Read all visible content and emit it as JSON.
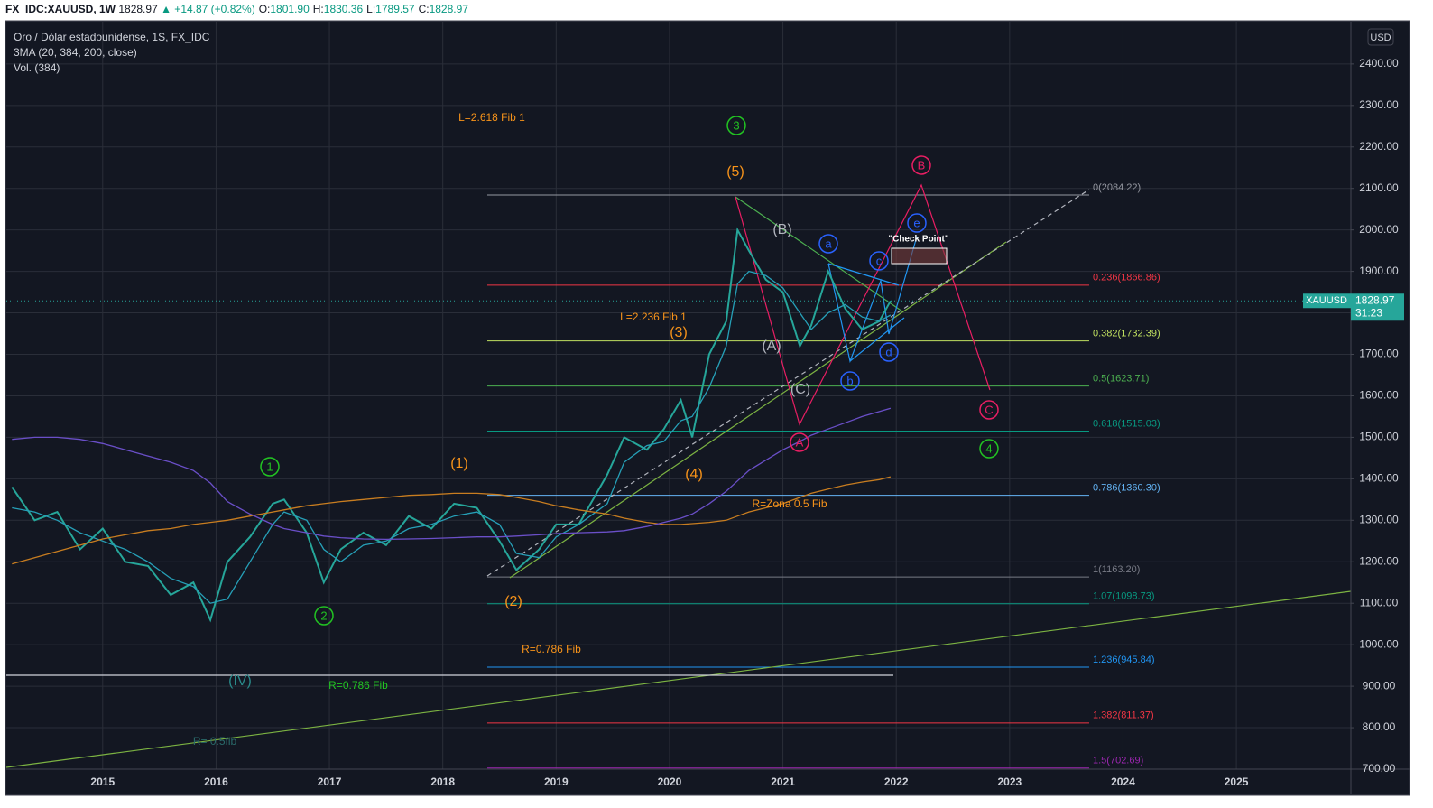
{
  "header": {
    "symbol": "FX_IDC:XAUUSD, 1W",
    "last": "1828.97",
    "change": "▲ +14.87 (+0.82%)",
    "ohlc": [
      {
        "label": "O:",
        "value": "1801.90"
      },
      {
        "label": "H:",
        "value": "1830.36"
      },
      {
        "label": "L:",
        "value": "1789.57"
      },
      {
        "label": "C:",
        "value": "1828.97"
      }
    ]
  },
  "chart_data": {
    "type": "line",
    "title": "Oro / Dólar estadounidense, 1S, FX_IDC",
    "legend_lines": [
      "3MA (20, 384, 200, close)",
      "Vol. (384)"
    ],
    "currency": "USD",
    "xlim": [
      2014.15,
      2026.01
    ],
    "xticks": [
      2015,
      2016,
      2017,
      2018,
      2019,
      2020,
      2021,
      2022,
      2023,
      2024,
      2025
    ],
    "ylim": [
      700,
      2502
    ],
    "yticks": [
      {
        "value": 700,
        "label": "700.00"
      },
      {
        "value": 800,
        "label": "800.00"
      },
      {
        "value": 900,
        "label": "900.00"
      },
      {
        "value": 1000,
        "label": "1000.00"
      },
      {
        "value": 1100,
        "label": "1100.00"
      },
      {
        "value": 1200,
        "label": "1200.00"
      },
      {
        "value": 1300,
        "label": "1300.00"
      },
      {
        "value": 1400,
        "label": "1400.00"
      },
      {
        "value": 1500,
        "label": "1500.00"
      },
      {
        "value": 1600,
        "label": "1600.00"
      },
      {
        "value": 1700,
        "label": "1700.00"
      },
      {
        "value": 1800,
        "label": "1800.00"
      },
      {
        "value": 1900,
        "label": "1900.00"
      },
      {
        "value": 2000,
        "label": "2000.00"
      },
      {
        "value": 2100,
        "label": "2100.00"
      },
      {
        "value": 2200,
        "label": "2200.00"
      },
      {
        "value": 2300,
        "label": "2300.00"
      },
      {
        "value": 2400,
        "label": "2400.00"
      }
    ],
    "grid": true,
    "x": [
      2014.2,
      2014.4,
      2014.6,
      2014.8,
      2015.0,
      2015.2,
      2015.4,
      2015.6,
      2015.8,
      2015.95,
      2016.1,
      2016.3,
      2016.5,
      2016.6,
      2016.8,
      2016.95,
      2017.1,
      2017.3,
      2017.5,
      2017.7,
      2017.9,
      2018.1,
      2018.3,
      2018.5,
      2018.65,
      2018.85,
      2019.0,
      2019.2,
      2019.45,
      2019.6,
      2019.8,
      2019.95,
      2020.1,
      2020.2,
      2020.35,
      2020.5,
      2020.6,
      2020.7,
      2020.85,
      2021.0,
      2021.15,
      2021.25,
      2021.4,
      2021.55,
      2021.7,
      2021.85,
      2021.95
    ],
    "series": [
      {
        "name": "XAUUSD",
        "color": "#26a69a",
        "values": [
          1380,
          1300,
          1320,
          1230,
          1280,
          1200,
          1190,
          1120,
          1150,
          1060,
          1200,
          1260,
          1340,
          1350,
          1270,
          1150,
          1230,
          1270,
          1240,
          1310,
          1280,
          1340,
          1330,
          1250,
          1180,
          1230,
          1290,
          1290,
          1410,
          1500,
          1470,
          1520,
          1590,
          1500,
          1700,
          1780,
          2000,
          1950,
          1880,
          1850,
          1720,
          1770,
          1900,
          1810,
          1760,
          1780,
          1828.97
        ]
      },
      {
        "color": "#26a0b8",
        "values": [
          1330,
          1320,
          1300,
          1270,
          1250,
          1230,
          1200,
          1160,
          1140,
          1100,
          1110,
          1200,
          1290,
          1320,
          1300,
          1230,
          1200,
          1240,
          1250,
          1280,
          1290,
          1310,
          1320,
          1290,
          1220,
          1210,
          1260,
          1290,
          1340,
          1440,
          1480,
          1490,
          1540,
          1550,
          1620,
          1720,
          1870,
          1900,
          1890,
          1860,
          1800,
          1760,
          1800,
          1820,
          1790,
          1780,
          1795
        ]
      },
      {
        "color": "#c87d20",
        "values": [
          1195,
          1210,
          1225,
          1240,
          1255,
          1265,
          1275,
          1280,
          1290,
          1295,
          1300,
          1310,
          1320,
          1325,
          1335,
          1340,
          1345,
          1350,
          1355,
          1360,
          1362,
          1365,
          1365,
          1362,
          1355,
          1345,
          1335,
          1325,
          1315,
          1305,
          1295,
          1290,
          1290,
          1292,
          1295,
          1300,
          1310,
          1320,
          1330,
          1340,
          1355,
          1365,
          1375,
          1385,
          1392,
          1398,
          1405
        ]
      },
      {
        "color": "#6a4fc8",
        "values": [
          1495,
          1500,
          1500,
          1495,
          1485,
          1470,
          1455,
          1440,
          1420,
          1390,
          1345,
          1315,
          1290,
          1280,
          1270,
          1262,
          1258,
          1255,
          1254,
          1255,
          1256,
          1258,
          1260,
          1260,
          1262,
          1265,
          1268,
          1270,
          1272,
          1275,
          1285,
          1295,
          1305,
          1315,
          1340,
          1370,
          1395,
          1420,
          1445,
          1470,
          1490,
          1505,
          1520,
          1535,
          1550,
          1562,
          1570
        ]
      }
    ],
    "last_price": 1828.97,
    "countdown": "31:23",
    "fib_levels": [
      {
        "value": 2084.22,
        "label": "0(2084.22)",
        "color": "#9598a1"
      },
      {
        "value": 1866.86,
        "label": "0.236(1866.86)",
        "color": "#f23645"
      },
      {
        "value": 1732.39,
        "label": "0.382(1732.39)",
        "color": "#c0e060"
      },
      {
        "value": 1623.71,
        "label": "0.5(1623.71)",
        "color": "#4caf50"
      },
      {
        "value": 1515.03,
        "label": "0.618(1515.03)",
        "color": "#089981"
      },
      {
        "value": 1360.3,
        "label": "0.786(1360.30)",
        "color": "#64b5f6"
      },
      {
        "value": 1163.2,
        "label": "1(1163.20)",
        "color": "#787b86"
      },
      {
        "value": 1098.73,
        "label": "1.07(1098.73)",
        "color": "#089981"
      },
      {
        "value": 945.84,
        "label": "1.236(945.84)",
        "color": "#2196f3"
      },
      {
        "value": 811.37,
        "label": "1.382(811.37)",
        "color": "#f23645"
      },
      {
        "value": 702.69,
        "label": "1.5(702.69)",
        "color": "#9c27b0"
      }
    ],
    "wave_labels": [
      {
        "text": "3",
        "color": "#22c322",
        "circle": true
      },
      {
        "text": "1",
        "color": "#22c322",
        "circle": true
      },
      {
        "text": "2",
        "color": "#22c322",
        "circle": true
      },
      {
        "text": "4",
        "color": "#22c322",
        "circle": true
      },
      {
        "text": "(5)",
        "color": "#f7931a"
      },
      {
        "text": "(1)",
        "color": "#f7931a"
      },
      {
        "text": "(2)",
        "color": "#f7931a"
      },
      {
        "text": "(3)",
        "color": "#f7931a"
      },
      {
        "text": "(4)",
        "color": "#f7931a"
      },
      {
        "text": "(B)",
        "color": "#b2b5be"
      },
      {
        "text": "(A)",
        "color": "#b2b5be"
      },
      {
        "text": "(C)",
        "color": "#b2b5be"
      },
      {
        "text": "(IV)",
        "color": "#2a8a8a"
      },
      {
        "text": "B",
        "color": "#e91e63",
        "circle": true
      },
      {
        "text": "A",
        "color": "#e91e63",
        "circle": true
      },
      {
        "text": "C",
        "color": "#e91e63",
        "circle": true
      },
      {
        "text": "a",
        "color": "#2962ff",
        "circle": true
      },
      {
        "text": "b",
        "color": "#2962ff",
        "circle": true
      },
      {
        "text": "c",
        "color": "#2962ff",
        "circle": true
      },
      {
        "text": "d",
        "color": "#2962ff",
        "circle": true
      },
      {
        "text": "e",
        "color": "#2962ff",
        "circle": true
      }
    ],
    "annotations": [
      {
        "text": "L=2.618 Fib 1",
        "color": "#f7931a"
      },
      {
        "text": "L=2.236 Fib 1",
        "color": "#f7931a"
      },
      {
        "text": "R=Zona 0.5 Fib",
        "color": "#f7931a"
      },
      {
        "text": "R=0.786 Fib",
        "color": "#f7931a"
      },
      {
        "text": "R=0.786 Fib",
        "color": "#22c322"
      },
      {
        "text": "R= 0.5fib",
        "color": "#2a6a6a"
      },
      {
        "text": "\"Check Point\"",
        "color": "#ffffff"
      }
    ]
  }
}
